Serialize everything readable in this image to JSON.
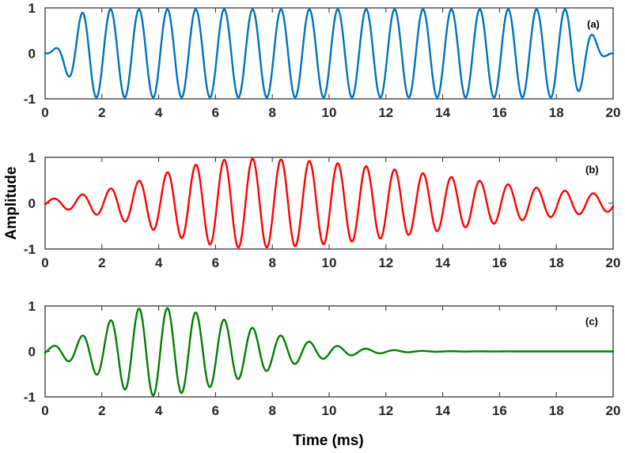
{
  "chart_data": [
    {
      "panel_label": "(a)",
      "type": "line",
      "xlim": [
        0,
        20
      ],
      "ylim": [
        -1,
        1
      ],
      "xticks": [
        0,
        2,
        4,
        6,
        8,
        10,
        12,
        14,
        16,
        18,
        20
      ],
      "yticks": [
        -1,
        0,
        1
      ],
      "grid": false,
      "color": "#0072BD",
      "signal": {
        "carrier_frequency_khz": 1,
        "envelope": "tapered-constant",
        "rise_ms": 1.6,
        "fall_start_ms": 18.4,
        "peak_amplitude": 0.97
      }
    },
    {
      "panel_label": "(b)",
      "type": "line",
      "xlim": [
        0,
        20
      ],
      "ylim": [
        -1,
        1
      ],
      "xticks": [
        0,
        2,
        4,
        6,
        8,
        10,
        12,
        14,
        16,
        18,
        20
      ],
      "yticks": [
        -1,
        0,
        1
      ],
      "grid": false,
      "color": "#FF0000",
      "signal": {
        "carrier_frequency_khz": 1,
        "envelope": "gaussian-asymmetric",
        "peak_time_ms": 7.0,
        "peak_amplitude": 0.97,
        "amplitude_at_20ms": 0.18
      }
    },
    {
      "panel_label": "(c)",
      "type": "line",
      "xlim": [
        0,
        20
      ],
      "ylim": [
        -1,
        1
      ],
      "xticks": [
        0,
        2,
        4,
        6,
        8,
        10,
        12,
        14,
        16,
        18,
        20
      ],
      "yticks": [
        -1,
        0,
        1
      ],
      "grid": false,
      "color": "#007F00",
      "signal": {
        "carrier_frequency_khz": 1,
        "envelope": "gaussian-asymmetric",
        "peak_time_ms": 3.7,
        "peak_amplitude": 0.97,
        "decay_to_zero_by_ms": 14
      }
    }
  ],
  "ylabel": "Amplitude",
  "xlabel": "Time (ms)"
}
